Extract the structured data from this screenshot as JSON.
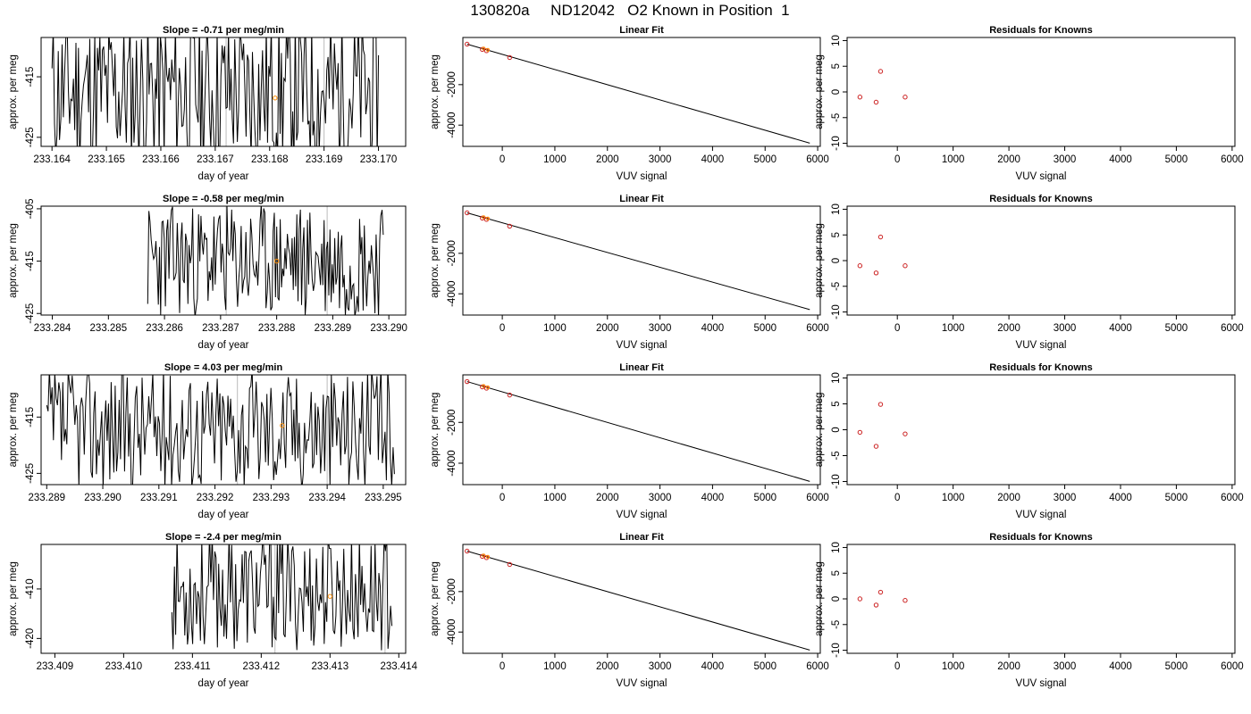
{
  "page_title": "130820a     ND12042   O2 Known in Position  1",
  "chart_data": [
    {
      "type": "line",
      "title": "Slope =  -0.71  per meg/min",
      "xlabel": "day of year",
      "ylabel": "approx. per meg",
      "xlim": [
        233.1638,
        233.1705
      ],
      "ylim": [
        -426.5,
        -408.5
      ],
      "x_ticks": [
        "233.164",
        "233.165",
        "233.166",
        "233.167",
        "233.168",
        "233.169",
        "233.170"
      ],
      "x_tick_values": [
        233.164,
        233.165,
        233.166,
        233.167,
        233.168,
        233.169,
        233.17
      ],
      "y_ticks": [
        "-425",
        "-415"
      ],
      "y_tick_values": [
        -425,
        -415
      ],
      "series": [
        {
          "x_start": 233.164,
          "x_end": 233.17,
          "n": 260,
          "center": -417.5,
          "amp": 13,
          "seed": 11
        }
      ],
      "gray_lines": [
        233.1672,
        233.169
      ],
      "marker": {
        "x": 233.1681,
        "y": -418.5,
        "color": "#ff8c00"
      }
    },
    {
      "type": "scatter",
      "title": "Linear Fit",
      "xlabel": "VUV signal",
      "ylabel": "approx. per meg",
      "xlim": [
        -750,
        6050
      ],
      "ylim": [
        -5050,
        330
      ],
      "x_ticks": [
        "0",
        "1000",
        "2000",
        "3000",
        "4000",
        "5000",
        "6000"
      ],
      "x_tick_values": [
        0,
        1000,
        2000,
        3000,
        4000,
        5000,
        6000
      ],
      "y_ticks": [
        "-4000",
        "-2000"
      ],
      "y_tick_values": [
        -4000,
        -2000
      ],
      "points": [
        {
          "x": -670,
          "y": 0
        },
        {
          "x": -380,
          "y": -260
        },
        {
          "x": -300,
          "y": -325
        },
        {
          "x": 140,
          "y": -660
        }
      ],
      "fit_line": {
        "x": [
          -670,
          5850
        ],
        "y": [
          0,
          -4890
        ]
      },
      "point_color": "#cc2222",
      "accent_color": "#ff8c00"
    },
    {
      "type": "scatter",
      "title": "Residuals for Knowns",
      "xlabel": "VUV signal",
      "ylabel": "approx. per meg",
      "xlim": [
        -900,
        6050
      ],
      "ylim": [
        -10.6,
        10.6
      ],
      "x_ticks": [
        "0",
        "1000",
        "2000",
        "3000",
        "4000",
        "5000",
        "6000"
      ],
      "x_tick_values": [
        0,
        1000,
        2000,
        3000,
        4000,
        5000,
        6000
      ],
      "y_ticks": [
        "-10",
        "-5",
        "0",
        "5",
        "10"
      ],
      "y_tick_values": [
        -10,
        -5,
        0,
        5,
        10
      ],
      "points": [
        {
          "x": -670,
          "y": -1
        },
        {
          "x": -380,
          "y": -2
        },
        {
          "x": -300,
          "y": 4
        },
        {
          "x": 140,
          "y": -1
        }
      ],
      "point_color": "#cc2222"
    },
    {
      "type": "line",
      "title": "Slope =  -0.58  per meg/min",
      "xlabel": "day of year",
      "ylabel": "approx. per meg",
      "xlim": [
        233.2838,
        233.2903
      ],
      "ylim": [
        -425.3,
        -404.5
      ],
      "x_ticks": [
        "233.284",
        "233.285",
        "233.286",
        "233.287",
        "233.288",
        "233.289",
        "233.290"
      ],
      "x_tick_values": [
        233.284,
        233.285,
        233.286,
        233.287,
        233.288,
        233.289,
        233.29
      ],
      "y_ticks": [
        "-425",
        "-415",
        "-405"
      ],
      "y_tick_values": [
        -425,
        -415,
        -405
      ],
      "series": [
        {
          "x_start": 233.2857,
          "x_end": 233.2899,
          "n": 200,
          "center": -415,
          "amp": 11,
          "seed": 23
        }
      ],
      "gray_lines": [
        233.2871,
        233.2889
      ],
      "marker": {
        "x": 233.288,
        "y": -415,
        "color": "#ff8c00"
      }
    },
    {
      "type": "scatter",
      "title": "Linear Fit",
      "xlabel": "VUV signal",
      "ylabel": "approx. per meg",
      "xlim": [
        -750,
        6050
      ],
      "ylim": [
        -5050,
        330
      ],
      "x_ticks": [
        "0",
        "1000",
        "2000",
        "3000",
        "4000",
        "5000",
        "6000"
      ],
      "x_tick_values": [
        0,
        1000,
        2000,
        3000,
        4000,
        5000,
        6000
      ],
      "y_ticks": [
        "-4000",
        "-2000"
      ],
      "y_tick_values": [
        -4000,
        -2000
      ],
      "points": [
        {
          "x": -670,
          "y": 0
        },
        {
          "x": -380,
          "y": -260
        },
        {
          "x": -300,
          "y": -325
        },
        {
          "x": 140,
          "y": -660
        }
      ],
      "fit_line": {
        "x": [
          -670,
          5850
        ],
        "y": [
          0,
          -4780
        ]
      },
      "point_color": "#cc2222",
      "accent_color": "#ff8c00"
    },
    {
      "type": "scatter",
      "title": "Residuals for Knowns",
      "xlabel": "VUV signal",
      "ylabel": "approx. per meg",
      "xlim": [
        -900,
        6050
      ],
      "ylim": [
        -10.6,
        10.6
      ],
      "x_ticks": [
        "0",
        "1000",
        "2000",
        "3000",
        "4000",
        "5000",
        "6000"
      ],
      "x_tick_values": [
        0,
        1000,
        2000,
        3000,
        4000,
        5000,
        6000
      ],
      "y_ticks": [
        "-10",
        "-5",
        "0",
        "5",
        "10"
      ],
      "y_tick_values": [
        -10,
        -5,
        0,
        5,
        10
      ],
      "points": [
        {
          "x": -670,
          "y": -1
        },
        {
          "x": -380,
          "y": -2.4
        },
        {
          "x": -300,
          "y": 4.6
        },
        {
          "x": 140,
          "y": -1
        }
      ],
      "point_color": "#cc2222"
    },
    {
      "type": "line",
      "title": "Slope =  4.03  per meg/min",
      "xlabel": "day of year",
      "ylabel": "approx. per meg",
      "xlim": [
        233.2889,
        233.2954
      ],
      "ylim": [
        -427,
        -407.5
      ],
      "x_ticks": [
        "233.289",
        "233.290",
        "233.291",
        "233.292",
        "233.293",
        "233.294",
        "233.295"
      ],
      "x_tick_values": [
        233.289,
        233.29,
        233.291,
        233.292,
        233.293,
        233.294,
        233.295
      ],
      "y_ticks": [
        "-425",
        "-415"
      ],
      "y_tick_values": [
        -425,
        -415
      ],
      "series": [
        {
          "x_start": 233.289,
          "x_end": 233.2952,
          "n": 260,
          "center": -417,
          "amp": 11,
          "seed": 37
        }
      ],
      "gray_lines": [
        233.2924,
        233.294
      ],
      "marker": {
        "x": 233.2932,
        "y": -416.5,
        "color": "#ff8c00"
      }
    },
    {
      "type": "scatter",
      "title": "Linear Fit",
      "xlabel": "VUV signal",
      "ylabel": "approx. per meg",
      "xlim": [
        -750,
        6050
      ],
      "ylim": [
        -5050,
        330
      ],
      "x_ticks": [
        "0",
        "1000",
        "2000",
        "3000",
        "4000",
        "5000",
        "6000"
      ],
      "x_tick_values": [
        0,
        1000,
        2000,
        3000,
        4000,
        5000,
        6000
      ],
      "y_ticks": [
        "-4000",
        "-2000"
      ],
      "y_tick_values": [
        -4000,
        -2000
      ],
      "points": [
        {
          "x": -670,
          "y": 0
        },
        {
          "x": -380,
          "y": -260
        },
        {
          "x": -300,
          "y": -325
        },
        {
          "x": 140,
          "y": -660
        }
      ],
      "fit_line": {
        "x": [
          -670,
          5850
        ],
        "y": [
          0,
          -4890
        ]
      },
      "point_color": "#cc2222",
      "accent_color": "#ff8c00"
    },
    {
      "type": "scatter",
      "title": "Residuals for Knowns",
      "xlabel": "VUV signal",
      "ylabel": "approx. per meg",
      "xlim": [
        -900,
        6050
      ],
      "ylim": [
        -10.6,
        10.6
      ],
      "x_ticks": [
        "0",
        "1000",
        "2000",
        "3000",
        "4000",
        "5000",
        "6000"
      ],
      "x_tick_values": [
        0,
        1000,
        2000,
        3000,
        4000,
        5000,
        6000
      ],
      "y_ticks": [
        "-10",
        "-5",
        "0",
        "5",
        "10"
      ],
      "y_tick_values": [
        -10,
        -5,
        0,
        5,
        10
      ],
      "points": [
        {
          "x": -670,
          "y": -0.5
        },
        {
          "x": -380,
          "y": -3.2
        },
        {
          "x": -300,
          "y": 4.9
        },
        {
          "x": 140,
          "y": -0.8
        }
      ],
      "point_color": "#cc2222"
    },
    {
      "type": "line",
      "title": "Slope =  -2.4  per meg/min",
      "xlabel": "day of year",
      "ylabel": "approx. per meg",
      "xlim": [
        233.4088,
        233.4141
      ],
      "ylim": [
        -423,
        -401
      ],
      "x_ticks": [
        "233.409",
        "233.410",
        "233.411",
        "233.412",
        "233.413",
        "233.414"
      ],
      "x_tick_values": [
        233.409,
        233.41,
        233.411,
        233.412,
        233.413,
        233.414
      ],
      "y_ticks": [
        "-420",
        "-410"
      ],
      "y_tick_values": [
        -420,
        -410
      ],
      "series": [
        {
          "x_start": 233.4107,
          "x_end": 233.4139,
          "n": 170,
          "center": -410.5,
          "amp": 12,
          "seed": 53
        }
      ],
      "gray_lines": [
        233.4122,
        233.4138
      ],
      "marker": {
        "x": 233.413,
        "y": -411.5,
        "color": "#ff8c00"
      }
    },
    {
      "type": "scatter",
      "title": "Linear Fit",
      "xlabel": "VUV signal",
      "ylabel": "approx. per meg",
      "xlim": [
        -750,
        6050
      ],
      "ylim": [
        -5050,
        330
      ],
      "x_ticks": [
        "0",
        "1000",
        "2000",
        "3000",
        "4000",
        "5000",
        "6000"
      ],
      "x_tick_values": [
        0,
        1000,
        2000,
        3000,
        4000,
        5000,
        6000
      ],
      "y_ticks": [
        "-4000",
        "-2000"
      ],
      "y_tick_values": [
        -4000,
        -2000
      ],
      "points": [
        {
          "x": -670,
          "y": 0
        },
        {
          "x": -380,
          "y": -260
        },
        {
          "x": -300,
          "y": -325
        },
        {
          "x": 140,
          "y": -660
        }
      ],
      "fit_line": {
        "x": [
          -670,
          5850
        ],
        "y": [
          0,
          -4890
        ]
      },
      "point_color": "#cc2222",
      "accent_color": "#ff8c00"
    },
    {
      "type": "scatter",
      "title": "Residuals for Knowns",
      "xlabel": "VUV signal",
      "ylabel": "approx. per meg",
      "xlim": [
        -900,
        6050
      ],
      "ylim": [
        -10.6,
        10.6
      ],
      "x_ticks": [
        "0",
        "1000",
        "2000",
        "3000",
        "4000",
        "5000",
        "6000"
      ],
      "x_tick_values": [
        0,
        1000,
        2000,
        3000,
        4000,
        5000,
        6000
      ],
      "y_ticks": [
        "-10",
        "-5",
        "0",
        "5",
        "10"
      ],
      "y_tick_values": [
        -10,
        -5,
        0,
        5,
        10
      ],
      "points": [
        {
          "x": -670,
          "y": 0
        },
        {
          "x": -380,
          "y": -1.2
        },
        {
          "x": -300,
          "y": 1.3
        },
        {
          "x": 140,
          "y": -0.3
        }
      ],
      "point_color": "#cc2222"
    }
  ]
}
